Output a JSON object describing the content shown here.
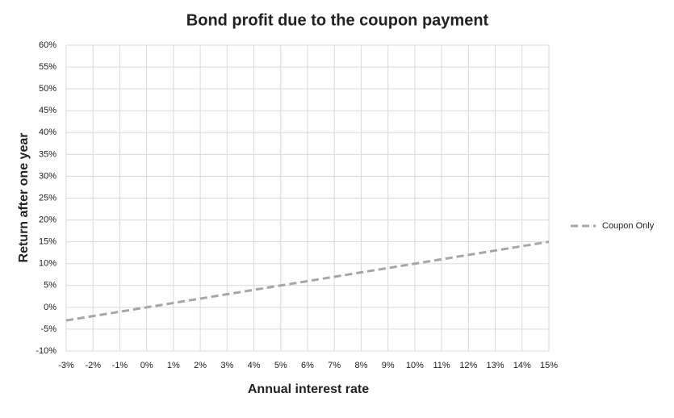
{
  "chart_data": {
    "type": "line",
    "title": "Bond profit due to the coupon payment",
    "x_label": "Annual interest rate",
    "y_label": "Return after one year",
    "x": [
      -3,
      -2,
      -1,
      0,
      1,
      2,
      3,
      4,
      5,
      6,
      7,
      8,
      9,
      10,
      11,
      12,
      13,
      14,
      15
    ],
    "series": [
      {
        "name": "Coupon Only",
        "color": "#a6a6a6",
        "values": [
          -3,
          -2,
          -1,
          0,
          1,
          2,
          3,
          4,
          5,
          6,
          7,
          8,
          9,
          10,
          11,
          12,
          13,
          14,
          15
        ]
      }
    ],
    "xlim": [
      -3,
      15
    ],
    "xticks": [
      {
        "value": -3,
        "label": "-3%"
      },
      {
        "value": -2,
        "label": "-2%"
      },
      {
        "value": -1,
        "label": "-1%"
      },
      {
        "value": 0,
        "label": "0%"
      },
      {
        "value": 1,
        "label": "1%"
      },
      {
        "value": 2,
        "label": "2%"
      },
      {
        "value": 3,
        "label": "3%"
      },
      {
        "value": 4,
        "label": "4%"
      },
      {
        "value": 5,
        "label": "5%"
      },
      {
        "value": 6,
        "label": "6%"
      },
      {
        "value": 7,
        "label": "7%"
      },
      {
        "value": 8,
        "label": "8%"
      },
      {
        "value": 9,
        "label": "9%"
      },
      {
        "value": 10,
        "label": "10%"
      },
      {
        "value": 11,
        "label": "11%"
      },
      {
        "value": 12,
        "label": "12%"
      },
      {
        "value": 13,
        "label": "13%"
      },
      {
        "value": 14,
        "label": "14%"
      },
      {
        "value": 15,
        "label": "15%"
      }
    ],
    "ylim": [
      -10,
      60
    ],
    "yticks": [
      {
        "value": -10,
        "label": "-10%"
      },
      {
        "value": -5,
        "label": "-5%"
      },
      {
        "value": 0,
        "label": "0%"
      },
      {
        "value": 5,
        "label": "5%"
      },
      {
        "value": 10,
        "label": "10%"
      },
      {
        "value": 15,
        "label": "15%"
      },
      {
        "value": 20,
        "label": "20%"
      },
      {
        "value": 25,
        "label": "25%"
      },
      {
        "value": 30,
        "label": "30%"
      },
      {
        "value": 35,
        "label": "35%"
      },
      {
        "value": 40,
        "label": "40%"
      },
      {
        "value": 45,
        "label": "45%"
      },
      {
        "value": 50,
        "label": "50%"
      },
      {
        "value": 55,
        "label": "55%"
      },
      {
        "value": 60,
        "label": "60%"
      }
    ],
    "grid": true,
    "legend": "right"
  }
}
